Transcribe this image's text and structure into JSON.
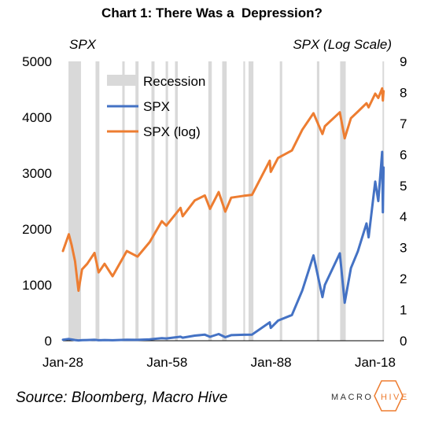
{
  "chart_data": {
    "type": "line",
    "title": "Chart 1: There Was a  Depression?",
    "left_axis_title": "SPX",
    "right_axis_title": "SPX (Log Scale)",
    "x_tick_labels": [
      "Jan-28",
      "Jan-58",
      "Jan-88",
      "Jan-18"
    ],
    "x_ticks": [
      1928,
      1958,
      1988,
      2018
    ],
    "xlim": [
      1928,
      2020.5
    ],
    "ylim_left": [
      0,
      5000
    ],
    "yticks_left": [
      0,
      1000,
      2000,
      3000,
      4000,
      5000
    ],
    "ylim_right": [
      0,
      9
    ],
    "yticks_right": [
      0,
      1,
      2,
      3,
      4,
      5,
      6,
      7,
      8,
      9
    ],
    "log_base": "e",
    "legend": [
      "Recession",
      "SPX",
      "SPX (log)"
    ],
    "legend_position": "upper-left",
    "grid": false,
    "colors": {
      "recession": "#d9d9d9",
      "spx": "#4472c4",
      "spx_log": "#ed7d31"
    },
    "recessions": [
      [
        1929.6,
        1933.2
      ],
      [
        1937.4,
        1938.5
      ],
      [
        1945.1,
        1945.8
      ],
      [
        1948.9,
        1949.8
      ],
      [
        1953.5,
        1954.4
      ],
      [
        1957.6,
        1958.3
      ],
      [
        1960.3,
        1961.1
      ],
      [
        1969.9,
        1970.9
      ],
      [
        1973.9,
        1975.2
      ],
      [
        1980.0,
        1980.5
      ],
      [
        1981.5,
        1982.9
      ],
      [
        1990.5,
        1991.2
      ],
      [
        2001.2,
        2001.9
      ],
      [
        2007.9,
        2009.5
      ],
      [
        2020.1,
        2020.3
      ]
    ],
    "series": [
      {
        "name": "SPX",
        "axis": "left",
        "x": [
          1928,
          1929.7,
          1930.5,
          1931.5,
          1932.5,
          1933.5,
          1935,
          1937.1,
          1938.3,
          1940,
          1942.3,
          1946.4,
          1949.5,
          1953,
          1956.5,
          1957.8,
          1961.9,
          1962.5,
          1966,
          1968.9,
          1970.4,
          1972.9,
          1974.8,
          1976.5,
          1980.2,
          1982.5,
          1987.6,
          1987.9,
          1990,
          1994,
          1997,
          2000.2,
          2002.8,
          2003.5,
          2007.8,
          2009.2,
          2011,
          2013,
          2015.5,
          2016.1,
          2018,
          2018.9,
          2020.0,
          2020.2,
          2020.4
        ],
        "y": [
          18,
          31,
          22,
          13,
          5,
          10,
          12,
          17,
          9,
          12,
          8,
          18,
          15,
          24,
          47,
          41,
          72,
          55,
          92,
          108,
          70,
          120,
          64,
          100,
          107,
          110,
          330,
          230,
          360,
          460,
          900,
          1527,
          780,
          1000,
          1565,
          680,
          1300,
          1600,
          2100,
          1850,
          2850,
          2500,
          3380,
          2300,
          3100
        ]
      },
      {
        "name": "SPX (log)",
        "axis": "right",
        "x": [
          1928,
          1929.7,
          1930.5,
          1931.5,
          1932.5,
          1933.5,
          1935,
          1937.1,
          1938.3,
          1940,
          1942.3,
          1946.4,
          1949.5,
          1953,
          1956.5,
          1957.8,
          1961.9,
          1962.5,
          1966,
          1968.9,
          1970.4,
          1972.9,
          1974.8,
          1976.5,
          1980.2,
          1982.5,
          1987.6,
          1987.9,
          1990,
          1994,
          1997,
          2000.2,
          2002.8,
          2003.5,
          2007.8,
          2009.2,
          2011,
          2013,
          2015.5,
          2016.1,
          2018,
          2018.9,
          2020.0,
          2020.2,
          2020.4
        ],
        "y": [
          2.89,
          3.43,
          3.09,
          2.56,
          1.61,
          2.3,
          2.48,
          2.83,
          2.2,
          2.48,
          2.08,
          2.89,
          2.71,
          3.18,
          3.85,
          3.71,
          4.28,
          4.01,
          4.52,
          4.68,
          4.25,
          4.79,
          4.16,
          4.61,
          4.67,
          4.7,
          5.8,
          5.44,
          5.89,
          6.13,
          6.8,
          7.33,
          6.66,
          6.91,
          7.36,
          6.52,
          7.17,
          7.38,
          7.65,
          7.52,
          7.96,
          7.82,
          8.13,
          7.74,
          8.04
        ]
      }
    ]
  },
  "footer": {
    "source": "Source: Bloomberg, Macro Hive",
    "logo_left": "MACRO",
    "logo_right": "HIVE"
  }
}
